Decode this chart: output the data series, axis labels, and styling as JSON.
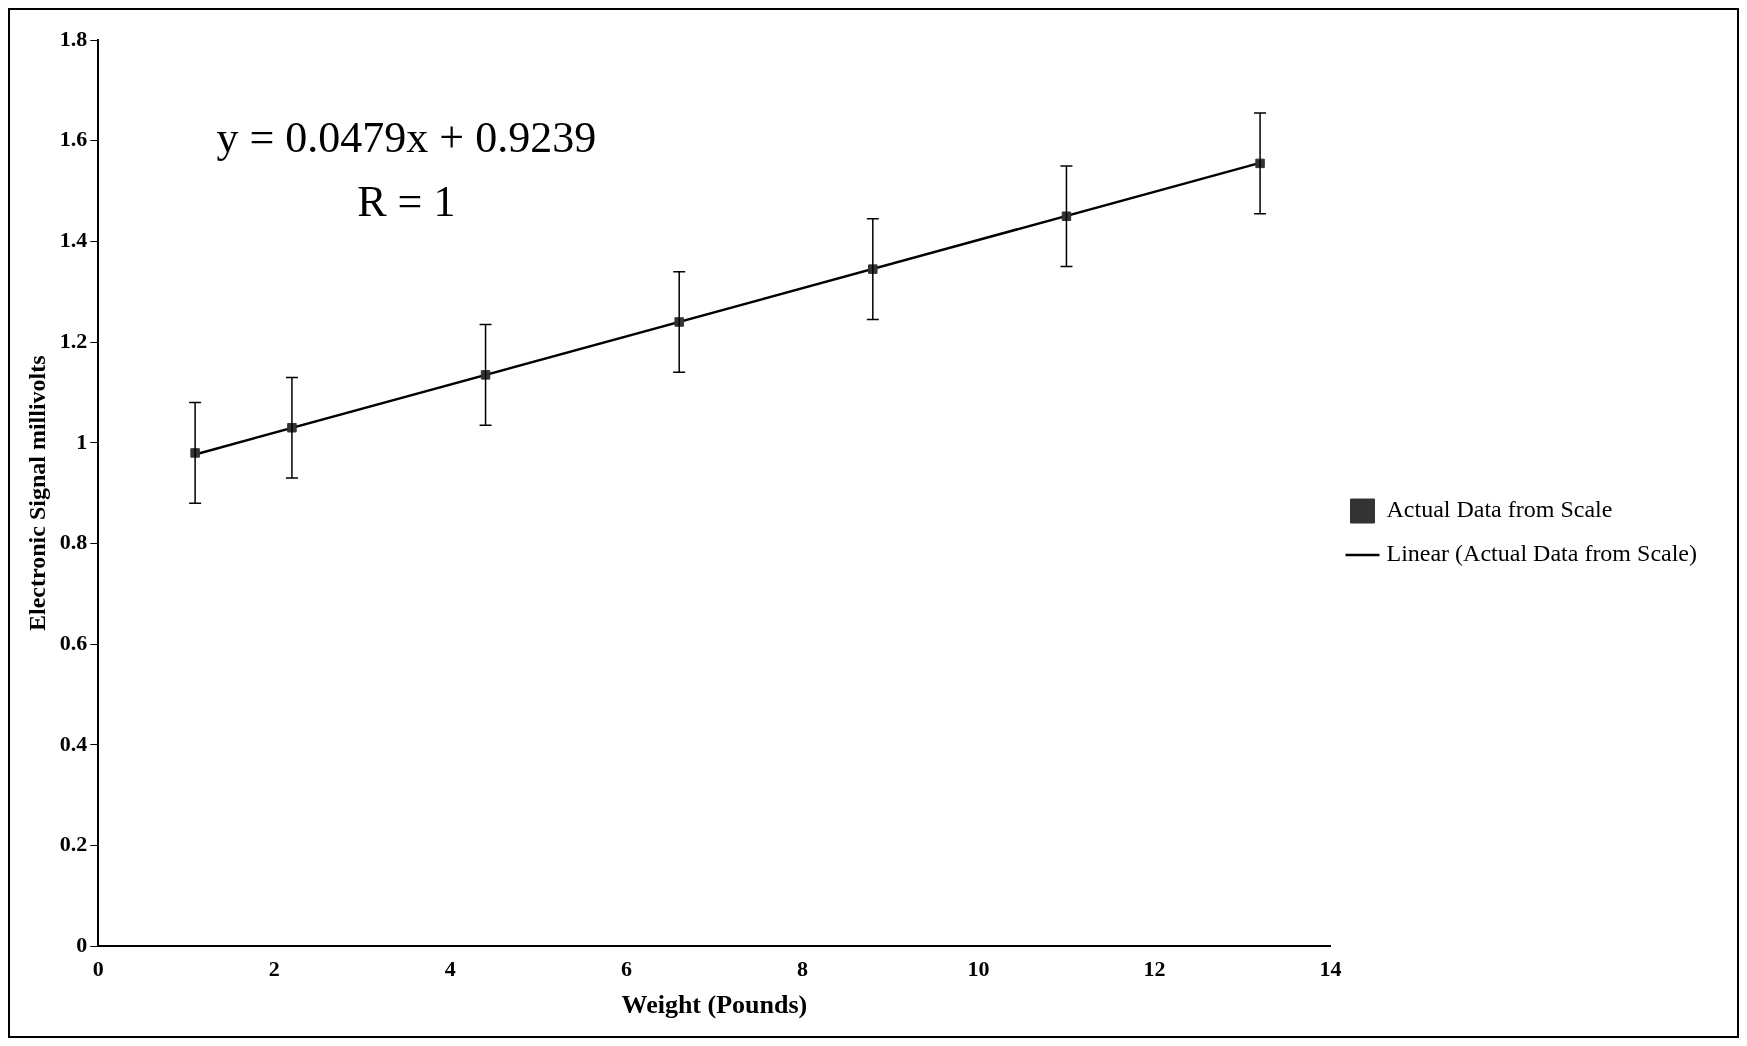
{
  "chart_data": {
    "type": "scatter",
    "xlabel": "Weight (Pounds)",
    "ylabel": "Electronic Signal millivolts",
    "annotations": [
      "y = 0.0479x + 0.9239",
      "R = 1"
    ],
    "x": [
      1.1,
      2.2,
      4.4,
      6.6,
      8.8,
      11,
      13.2
    ],
    "series": [
      {
        "name": "Actual Data from Scale",
        "color": "#333333",
        "marker": "square",
        "values": [
          0.98,
          1.03,
          1.135,
          1.24,
          1.345,
          1.45,
          1.555
        ],
        "errors": [
          0.1,
          0.1,
          0.1,
          0.1,
          0.1,
          0.1,
          0.1
        ]
      },
      {
        "name": "Linear (Actual Data from Scale)",
        "type": "line",
        "color": "#000000",
        "marker": "none",
        "x": [
          1.1,
          13.2
        ],
        "values": [
          0.977,
          1.556
        ]
      }
    ],
    "xlim": [
      0,
      14
    ],
    "xticks": [
      0,
      2,
      4,
      6,
      8,
      10,
      12,
      14
    ],
    "ylim": [
      0,
      1.8
    ],
    "yticks": [
      0,
      0.2,
      0.4,
      0.6,
      0.8,
      1,
      1.2,
      1.4,
      1.6,
      1.8
    ],
    "grid": false,
    "legend": "right",
    "line_style": "solid"
  }
}
